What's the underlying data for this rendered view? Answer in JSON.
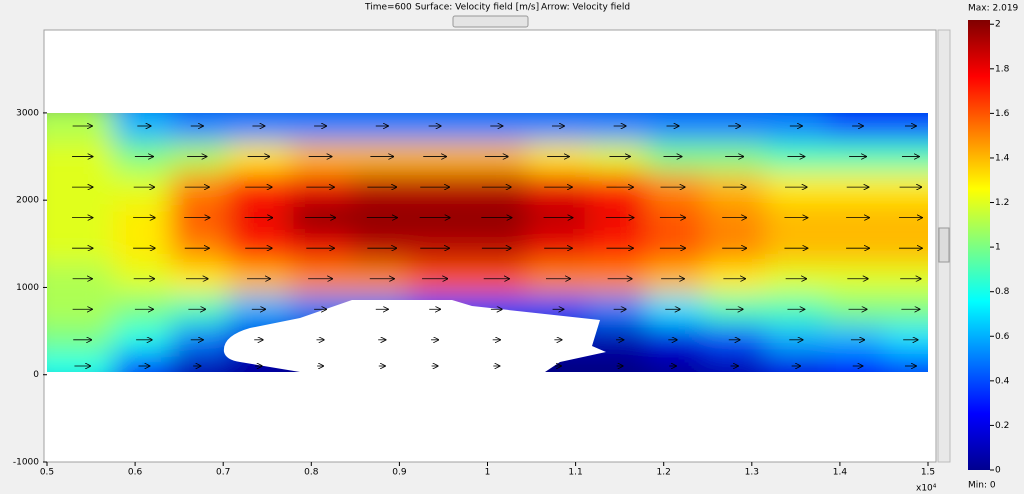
{
  "chart_data": {
    "type": "heatmap-quiver",
    "time_label": "Time=600",
    "surface_label": "Surface: Velocity field [m/s]",
    "arrow_label": "Arrow: Velocity field",
    "xlim": [
      0.5,
      1.5
    ],
    "xticks": [
      0.5,
      0.6,
      0.7,
      0.8,
      0.9,
      1,
      1.1,
      1.2,
      1.3,
      1.4,
      1.5
    ],
    "x_multiplier": "x10⁴",
    "ylim": [
      -1000,
      3950
    ],
    "yticks": [
      -1000,
      0,
      1000,
      2000,
      3000
    ],
    "field": {
      "x": [
        0.54,
        0.61,
        0.67,
        0.74,
        0.81,
        0.88,
        0.94,
        1.01,
        1.08,
        1.15,
        1.21,
        1.28,
        1.35,
        1.42,
        1.48
      ],
      "y": [
        2850,
        2500,
        2150,
        1800,
        1450,
        1100,
        750,
        400,
        100
      ],
      "speed": [
        [
          1.1,
          0.6,
          0.5,
          0.5,
          0.5,
          0.5,
          0.5,
          0.5,
          0.5,
          0.5,
          0.5,
          0.5,
          0.5,
          0.4,
          0.4
        ],
        [
          1.2,
          1.0,
          1.1,
          1.3,
          1.4,
          1.4,
          1.4,
          1.4,
          1.3,
          1.2,
          1.0,
          1.0,
          0.9,
          0.9,
          0.9
        ],
        [
          1.2,
          1.2,
          1.5,
          1.7,
          1.8,
          1.9,
          1.9,
          1.9,
          1.8,
          1.7,
          1.5,
          1.4,
          1.3,
          1.3,
          1.3
        ],
        [
          1.2,
          1.3,
          1.6,
          1.8,
          2.0,
          2.0,
          2.0,
          2.0,
          1.9,
          1.8,
          1.6,
          1.5,
          1.4,
          1.4,
          1.4
        ],
        [
          1.2,
          1.3,
          1.5,
          1.7,
          1.8,
          1.9,
          1.9,
          1.9,
          1.8,
          1.7,
          1.6,
          1.5,
          1.4,
          1.4,
          1.4
        ],
        [
          1.1,
          1.2,
          1.3,
          1.4,
          1.5,
          1.5,
          1.6,
          1.6,
          1.5,
          1.5,
          1.4,
          1.3,
          1.2,
          1.2,
          1.2
        ],
        [
          1.1,
          1.0,
          0.9,
          0.6,
          0.5,
          0.5,
          0.4,
          0.4,
          0.4,
          0.5,
          0.7,
          0.9,
          0.9,
          1.0,
          1.0
        ],
        [
          1.0,
          0.8,
          0.5,
          0.2,
          0.1,
          0.1,
          0.1,
          0.1,
          0.1,
          0.1,
          0.2,
          0.4,
          0.6,
          0.6,
          0.7
        ],
        [
          0.8,
          0.4,
          0.1,
          0.05,
          0,
          0,
          0,
          0,
          0,
          0,
          0.05,
          0.1,
          0.2,
          0.3,
          0.4
        ]
      ]
    },
    "clim": [
      0,
      2.019
    ],
    "cticks": [
      0,
      0.2,
      0.4,
      0.6,
      0.8,
      1,
      1.2,
      1.4,
      1.6,
      1.8,
      2
    ],
    "max_label": "Max: 2.019",
    "min_label": "Min: 0"
  }
}
